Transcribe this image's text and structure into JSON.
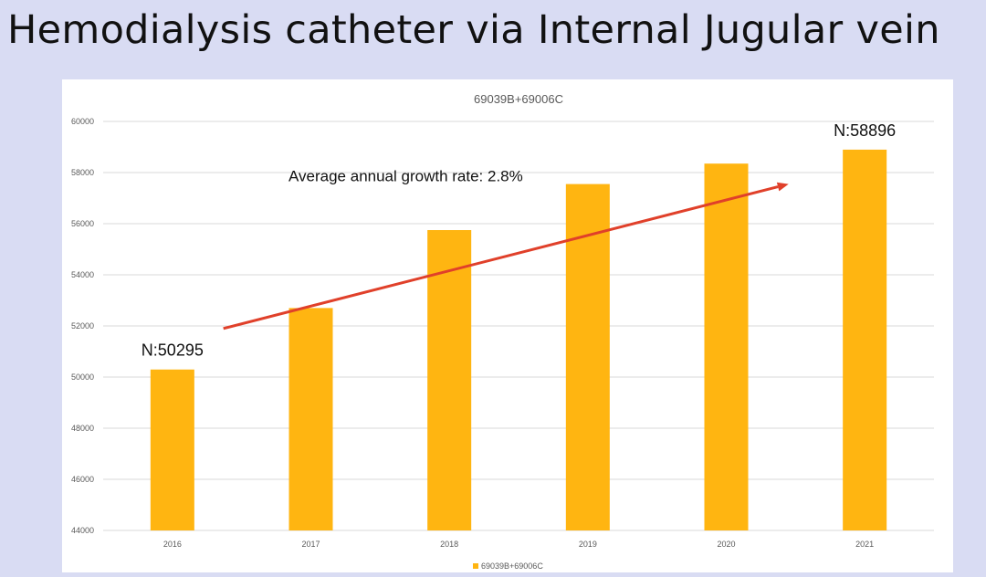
{
  "slide": {
    "title": "Hemodialysis catheter via Internal Jugular vein"
  },
  "colors": {
    "background": "#d9dcf3",
    "bar": "#ffb511",
    "trend_arrow": "#e0402a",
    "grid": "#d9d9d9"
  },
  "chart_data": {
    "type": "bar",
    "title": "69039B+69006C",
    "categories": [
      "2016",
      "2017",
      "2018",
      "2019",
      "2020",
      "2021"
    ],
    "series": [
      {
        "name": "69039B+69006C",
        "values": [
          50295,
          52700,
          55750,
          57550,
          58350,
          58896
        ]
      }
    ],
    "ylim": [
      44000,
      60000
    ],
    "yticks": [
      "44000",
      "46000",
      "48000",
      "50000",
      "52000",
      "54000",
      "56000",
      "58000",
      "60000"
    ],
    "grid": true,
    "legend_position": "bottom",
    "data_labels": [
      {
        "category": "2016",
        "text": "N:50295"
      },
      {
        "category": "2021",
        "text": "N:58896"
      }
    ],
    "annotation": {
      "text": "Average annual growth rate: 2.8%",
      "arrow": "upward trend arrow spanning 2016 to 2021"
    }
  }
}
